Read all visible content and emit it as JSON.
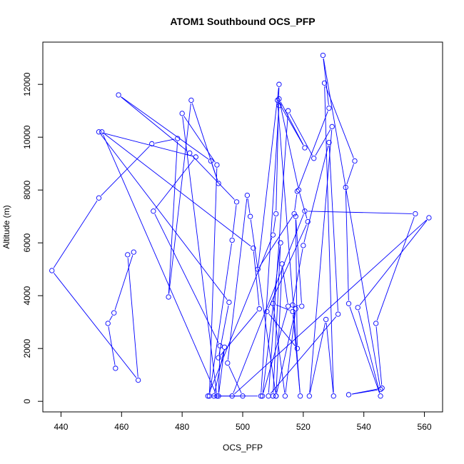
{
  "chart_data": {
    "type": "line",
    "title": "ATOM1 Southbound OCS_PFP",
    "xlabel": "OCS_PFP",
    "ylabel": "Altitude (m)",
    "xlim": [
      434,
      566
    ],
    "ylim": [
      -400,
      13600
    ],
    "xticks": [
      440,
      460,
      480,
      500,
      520,
      540,
      560
    ],
    "yticks": [
      0,
      2000,
      4000,
      6000,
      8000,
      10000,
      12000
    ],
    "series_color": "#0000ff",
    "marker": "open-circle",
    "grid": false,
    "legend": "none",
    "series": [
      {
        "x": [
          458.0,
          455.5,
          457.5,
          464.0,
          462.0,
          465.5,
          437.0,
          452.5,
          470.0,
          478.5,
          475.5,
          483.0,
          492.0,
          489.5,
          459.0,
          482.5,
          498.0,
          496.5,
          489.0,
          491.5,
          480.0,
          491.5,
          453.5,
          503.5,
          505.5,
          492.0,
          495.5,
          452.5,
          484.5,
          470.5,
          492.5,
          492.0,
          494.0,
          490.5,
          500.0,
          495.0,
          501.5,
          502.5,
          511.0,
          510.0,
          512.5,
          506.5,
          515.0,
          513.0,
          511.0,
          517.5,
          514.0,
          510.0,
          516.5,
          519.0,
          511.5,
          520.5,
          512.0,
          518.5,
          521.5,
          508.0,
          518.0,
          517.5,
          519.5,
          516.5,
          520.0,
          528.5,
          531.5,
          508.5,
          515.0,
          523.5,
          529.5,
          522.0,
          527.5,
          530.0,
          527.0,
          537.0,
          534.0,
          535.0,
          545.5,
          538.0,
          561.5,
          496.5,
          520.5,
          557.0,
          544.0,
          546.0,
          535.0,
          545.5,
          526.5,
          528.5,
          518.0,
          517.0,
          505.0,
          512.0,
          511.0,
          510.0,
          488.5,
          506.0,
          512.0
        ],
        "y": [
          1250,
          2950,
          3350,
          5650,
          5550,
          800,
          4950,
          7700,
          9750,
          9950,
          3950,
          11400,
          8250,
          9100,
          11600,
          9400,
          7550,
          6100,
          200,
          8950,
          10900,
          200,
          10200,
          5800,
          3500,
          1650,
          3750,
          10200,
          9250,
          7200,
          2100,
          200,
          2050,
          200,
          200,
          1450,
          7800,
          7000,
          200,
          200,
          6000,
          200,
          3600,
          5200,
          200,
          3500,
          200,
          3700,
          3400,
          200,
          11400,
          9600,
          11450,
          8000,
          6800,
          3400,
          2000,
          7000,
          3600,
          3650,
          5900,
          9800,
          3300,
          200,
          11000,
          9200,
          10400,
          200,
          3100,
          200,
          12050,
          9100,
          8100,
          3700,
          200,
          3550,
          6950,
          200,
          7200,
          7100,
          2950,
          500,
          250,
          450,
          13100,
          11100,
          7950,
          7100,
          5000,
          12000,
          7100,
          6300,
          200,
          200,
          11200
        ]
      }
    ]
  }
}
